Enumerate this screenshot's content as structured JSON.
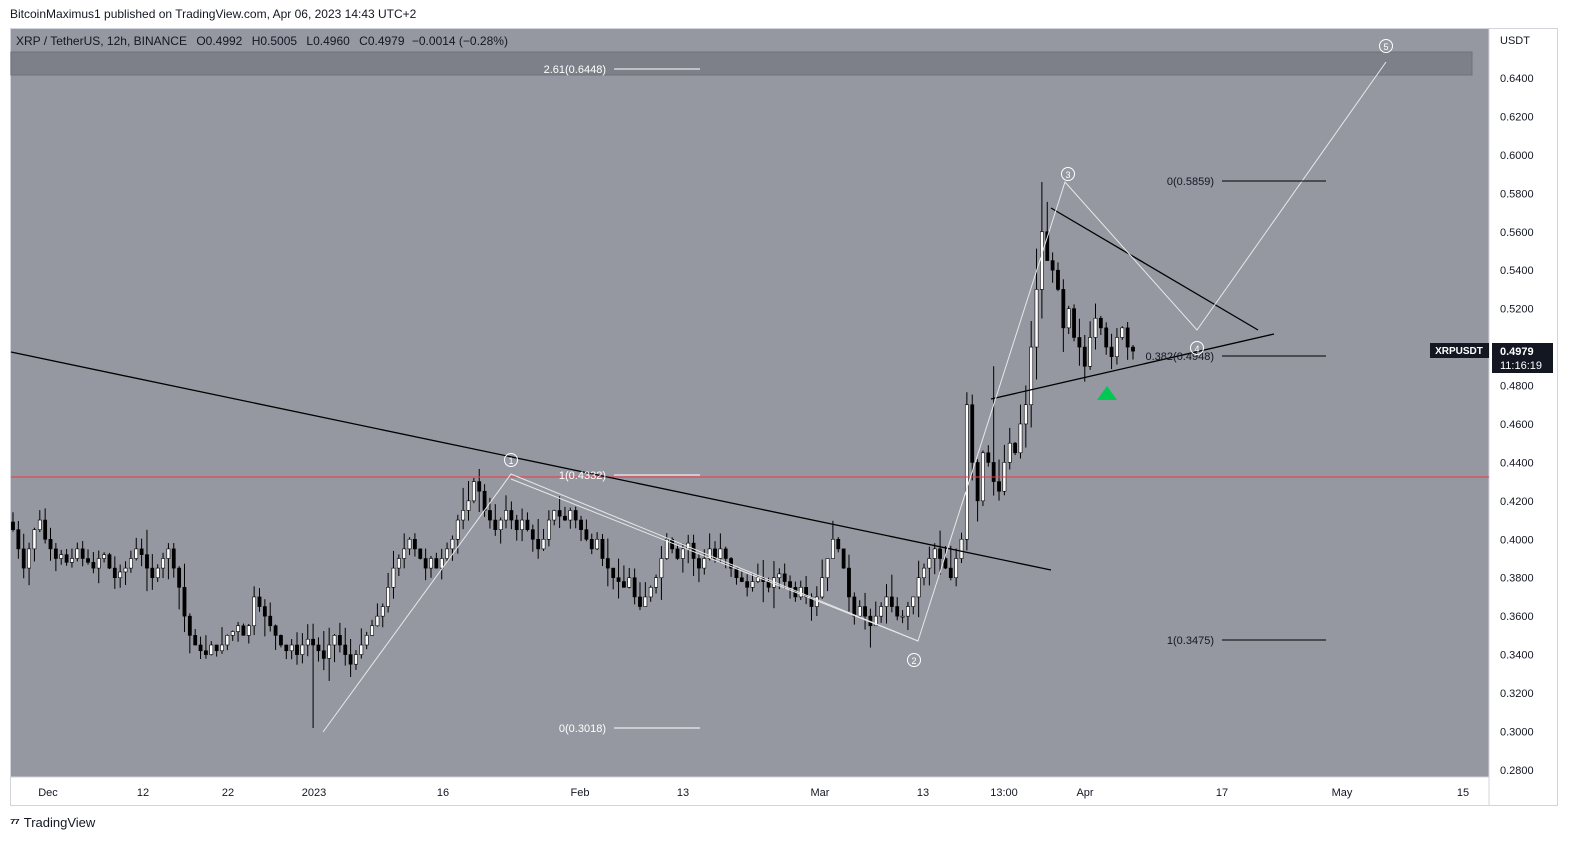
{
  "header": {
    "publisher_line": "BitcoinMaximus1 published on TradingView.com, Apr 06, 2023 14:43 UTC+2"
  },
  "legend": {
    "symbol": "XRP / TetherUS, 12h, BINANCE",
    "o_label": "O",
    "o": "0.4992",
    "h_label": "H",
    "h": "0.5005",
    "l_label": "L",
    "l": "0.4960",
    "c_label": "C",
    "c": "0.4979",
    "change": "−0.0014 (−0.28%)"
  },
  "axis": {
    "currency": "USDT",
    "price_ticks": [
      "0.6400",
      "0.6200",
      "0.6000",
      "0.5800",
      "0.5600",
      "0.5400",
      "0.5200",
      "0.5000",
      "0.4800",
      "0.4600",
      "0.4400",
      "0.4200",
      "0.4000",
      "0.3800",
      "0.3600",
      "0.3400",
      "0.3200",
      "0.3000",
      "0.2800"
    ],
    "time_ticks": [
      "Dec",
      "12",
      "22",
      "2023",
      "16",
      "Feb",
      "13",
      "Mar",
      "13",
      "13:00",
      "Apr",
      "17",
      "May",
      "15"
    ]
  },
  "price_tag": {
    "symbol": "XRPUSDT",
    "price": "0.4979",
    "countdown": "11:16:19"
  },
  "fib_labels": {
    "ext_261": "2.61(0.6448)",
    "left_1": "1(0.4332)",
    "left_0": "0(0.3018)",
    "right_0": "0(0.5859)",
    "right_382": "0.382(0.4948)",
    "right_1": "1(0.3475)"
  },
  "waves": [
    "1",
    "2",
    "3",
    "4",
    "5"
  ],
  "footer": {
    "brand": "TradingView"
  },
  "colors": {
    "chart_bg": "#9598a1",
    "candle": "#000000",
    "support_line": "#f23645",
    "wave_line": "#e8e8e8",
    "signal": "#00c853",
    "resistance_zone": "#787b86"
  },
  "chart_data": {
    "type": "candlestick",
    "title": "XRP / TetherUS, 12h, BINANCE",
    "ylabel": "USDT",
    "ylim": [
      0.27,
      0.655
    ],
    "horizontal_levels": [
      {
        "label": "2.61(0.6448)",
        "value": 0.6448
      },
      {
        "label": "1(0.4332)",
        "value": 0.4332
      },
      {
        "label": "0(0.3018)",
        "value": 0.3018
      },
      {
        "label": "0(0.5859)",
        "value": 0.5859
      },
      {
        "label": "0.382(0.4948)",
        "value": 0.4948
      },
      {
        "label": "1(0.3475)",
        "value": 0.3475
      }
    ],
    "support_level": 0.4332,
    "last_price": 0.4979,
    "wave_points": [
      {
        "wave": "0",
        "date": "2023-01-03",
        "price": 0.3018
      },
      {
        "wave": "1",
        "date": "2023-01-24",
        "price": 0.4332
      },
      {
        "wave": "2",
        "date": "2023-03-10",
        "price": 0.3475
      },
      {
        "wave": "3",
        "date": "2023-03-29",
        "price": 0.5859
      },
      {
        "wave": "4",
        "date": "2023-04-12",
        "price": 0.4948
      },
      {
        "wave": "5",
        "date": "2023-05-06",
        "price": 0.6448
      }
    ],
    "closes_approx": [
      0.405,
      0.395,
      0.385,
      0.395,
      0.405,
      0.41,
      0.4,
      0.395,
      0.39,
      0.392,
      0.388,
      0.39,
      0.395,
      0.39,
      0.388,
      0.385,
      0.39,
      0.392,
      0.385,
      0.38,
      0.383,
      0.385,
      0.39,
      0.395,
      0.392,
      0.385,
      0.38,
      0.385,
      0.39,
      0.395,
      0.385,
      0.375,
      0.36,
      0.35,
      0.345,
      0.342,
      0.34,
      0.345,
      0.342,
      0.345,
      0.35,
      0.352,
      0.355,
      0.35,
      0.355,
      0.37,
      0.365,
      0.36,
      0.355,
      0.35,
      0.345,
      0.342,
      0.345,
      0.34,
      0.345,
      0.348,
      0.345,
      0.342,
      0.338,
      0.345,
      0.35,
      0.345,
      0.34,
      0.335,
      0.34,
      0.345,
      0.35,
      0.355,
      0.36,
      0.365,
      0.375,
      0.385,
      0.39,
      0.395,
      0.4,
      0.395,
      0.39,
      0.385,
      0.39,
      0.385,
      0.39,
      0.395,
      0.4,
      0.41,
      0.415,
      0.42,
      0.43,
      0.425,
      0.415,
      0.41,
      0.405,
      0.41,
      0.415,
      0.41,
      0.405,
      0.41,
      0.405,
      0.4,
      0.395,
      0.4,
      0.41,
      0.415,
      0.412,
      0.41,
      0.415,
      0.41,
      0.405,
      0.4,
      0.395,
      0.4,
      0.39,
      0.385,
      0.38,
      0.378,
      0.375,
      0.38,
      0.37,
      0.365,
      0.37,
      0.375,
      0.38,
      0.39,
      0.4,
      0.395,
      0.39,
      0.395,
      0.398,
      0.39,
      0.385,
      0.39,
      0.395,
      0.39,
      0.395,
      0.39,
      0.385,
      0.38,
      0.378,
      0.375,
      0.378,
      0.38,
      0.378,
      0.375,
      0.38,
      0.382,
      0.378,
      0.375,
      0.37,
      0.375,
      0.37,
      0.365,
      0.37,
      0.38,
      0.39,
      0.4,
      0.395,
      0.385,
      0.37,
      0.36,
      0.365,
      0.36,
      0.355,
      0.36,
      0.365,
      0.37,
      0.365,
      0.36,
      0.36,
      0.365,
      0.37,
      0.38,
      0.385,
      0.39,
      0.395,
      0.39,
      0.385,
      0.38,
      0.39,
      0.4,
      0.47,
      0.44,
      0.42,
      0.445,
      0.44,
      0.43,
      0.425,
      0.44,
      0.45,
      0.445,
      0.46,
      0.47,
      0.5,
      0.53,
      0.56,
      0.545,
      0.54,
      0.53,
      0.51,
      0.52,
      0.505,
      0.5,
      0.49,
      0.505,
      0.515,
      0.51,
      0.5,
      0.495,
      0.505,
      0.51,
      0.5,
      0.4979
    ]
  }
}
